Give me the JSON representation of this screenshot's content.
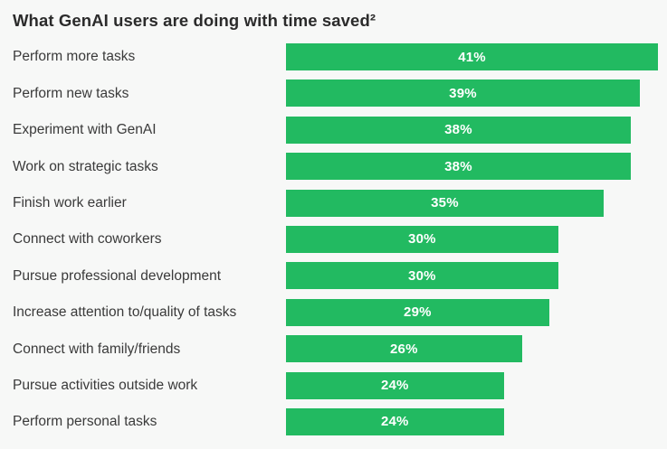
{
  "chart_data": {
    "type": "bar",
    "orientation": "horizontal",
    "title": "What GenAI users are doing with time saved²",
    "categories": [
      "Perform more tasks",
      "Perform new tasks",
      "Experiment with GenAI",
      "Work on strategic tasks",
      "Finish work earlier",
      "Connect with coworkers",
      "Pursue professional development",
      "Increase attention to/quality of tasks",
      "Connect with family/friends",
      "Pursue activities outside work",
      "Perform personal tasks"
    ],
    "values": [
      41,
      39,
      38,
      38,
      35,
      30,
      30,
      29,
      26,
      24,
      24
    ],
    "value_labels": [
      "41%",
      "39%",
      "38%",
      "38%",
      "35%",
      "30%",
      "30%",
      "29%",
      "26%",
      "24%",
      "24%"
    ],
    "value_suffix": "%",
    "xlim": [
      0,
      41
    ],
    "grid": false,
    "legend": false,
    "value_label_position": "center-inside",
    "colors": {
      "bar": "#22ba61",
      "value_label": "#ffffff",
      "category_label": "#3a3a3a",
      "title": "#2b2b2b",
      "background": "#f7f8f7"
    }
  }
}
